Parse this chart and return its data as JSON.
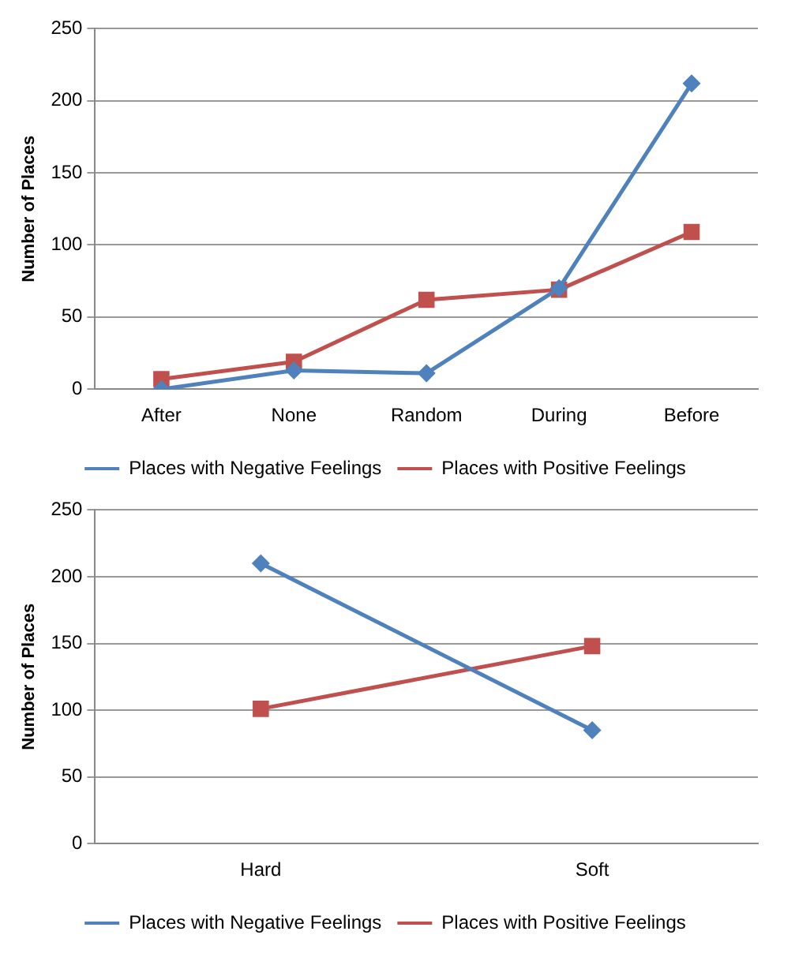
{
  "chart_data": [
    {
      "type": "line",
      "ylabel": "Number of Places",
      "categories": [
        "After",
        "None",
        "Random",
        "During",
        "Before"
      ],
      "ylim": [
        0,
        250
      ],
      "yticks": [
        0,
        50,
        100,
        150,
        200,
        250
      ],
      "grid": "y",
      "legend": "bottom",
      "line_style": "solid",
      "series": [
        {
          "name": "Places with Negative Feelings",
          "color": "#4f81bd",
          "marker": "diamond",
          "values": [
            0,
            13,
            11,
            70,
            212
          ]
        },
        {
          "name": "Places with Positive Feelings",
          "color": "#c0504d",
          "marker": "square",
          "values": [
            7,
            19,
            62,
            69,
            109
          ]
        }
      ]
    },
    {
      "type": "line",
      "ylabel": "Number of Places",
      "categories": [
        "Hard",
        "Soft"
      ],
      "ylim": [
        0,
        250
      ],
      "yticks": [
        0,
        50,
        100,
        150,
        200,
        250
      ],
      "grid": "y",
      "legend": "bottom",
      "line_style": "solid",
      "series": [
        {
          "name": "Places with Negative Feelings",
          "color": "#4f81bd",
          "marker": "diamond",
          "values": [
            210,
            85
          ]
        },
        {
          "name": "Places with Positive Feelings",
          "color": "#c0504d",
          "marker": "square",
          "values": [
            101,
            148
          ]
        }
      ]
    }
  ]
}
